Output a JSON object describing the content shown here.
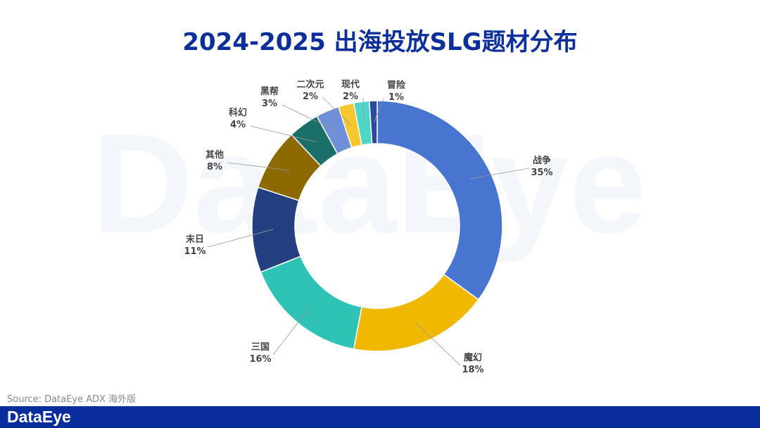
{
  "title": "2024-2025 出海投放SLG题材分布",
  "watermark": "DataEye",
  "source": "Source: DataEye ADX 海外版",
  "footer_logo": "DataEye",
  "chart_data": {
    "type": "pie",
    "donut": true,
    "title": "2024-2025 出海投放SLG题材分布",
    "categories": [
      "战争",
      "魔幻",
      "三国",
      "末日",
      "其他",
      "科幻",
      "黑帮",
      "二次元",
      "现代",
      "冒险"
    ],
    "values": [
      35,
      18,
      16,
      11,
      8,
      4,
      3,
      2,
      2,
      1
    ],
    "labels": [
      "35%",
      "18%",
      "16%",
      "11%",
      "8%",
      "4%",
      "3%",
      "2%",
      "2%",
      "1%"
    ],
    "colors": [
      "#4775cf",
      "#f0b800",
      "#2fc3b5",
      "#243f7f",
      "#8c6a00",
      "#1a7068",
      "#6f8fd8",
      "#f7c72e",
      "#4ed6c8",
      "#2b4a9e"
    ]
  }
}
